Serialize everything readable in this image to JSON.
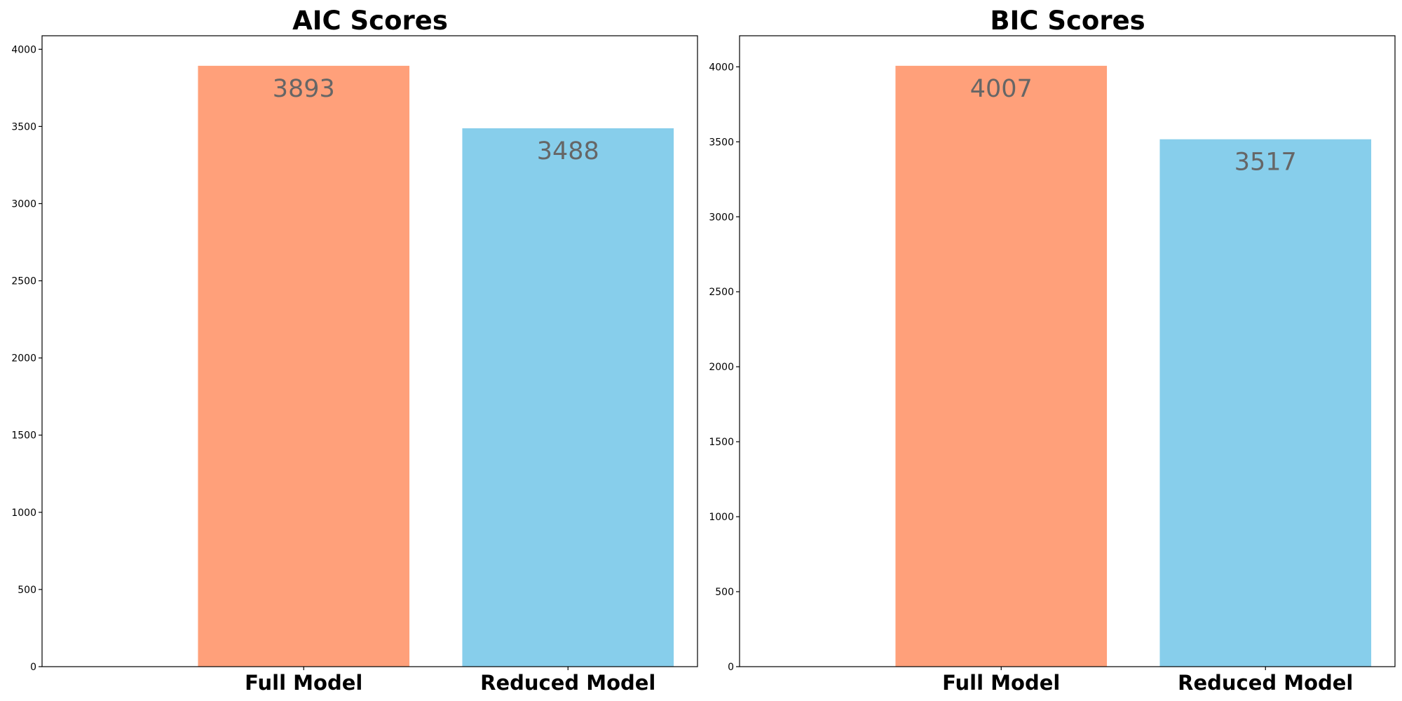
{
  "colors": {
    "full_model": "#ffa07a",
    "reduced_model": "#87ceeb",
    "data_label": "#666666"
  },
  "chart_data": [
    {
      "type": "bar",
      "title": "AIC Scores",
      "categories": [
        "Full Model",
        "Reduced Model"
      ],
      "values": [
        3893,
        3488
      ],
      "value_labels": [
        "3893",
        "3488"
      ],
      "bar_colors": [
        "#ffa07a",
        "#87ceeb"
      ],
      "ylim": [
        0,
        4087.65
      ],
      "yticks": [
        0,
        500,
        1000,
        1500,
        2000,
        2500,
        3000,
        3500,
        4000
      ],
      "ytick_labels": [
        "0",
        "500",
        "1000",
        "1500",
        "2000",
        "2500",
        "3000",
        "3500",
        "4000"
      ],
      "xlabel": "",
      "ylabel": "",
      "grid": false,
      "legend": false
    },
    {
      "type": "bar",
      "title": "BIC Scores",
      "categories": [
        "Full Model",
        "Reduced Model"
      ],
      "values": [
        4007,
        3517
      ],
      "value_labels": [
        "4007",
        "3517"
      ],
      "bar_colors": [
        "#ffa07a",
        "#87ceeb"
      ],
      "ylim": [
        0,
        4207.35
      ],
      "yticks": [
        0,
        500,
        1000,
        1500,
        2000,
        2500,
        3000,
        3500,
        4000
      ],
      "ytick_labels": [
        "0",
        "500",
        "1000",
        "1500",
        "2000",
        "2500",
        "3000",
        "3500",
        "4000"
      ],
      "xlabel": "",
      "ylabel": "",
      "grid": false,
      "legend": false
    }
  ]
}
